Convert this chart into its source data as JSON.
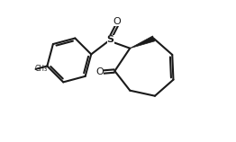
{
  "bg_color": "#ffffff",
  "line_color": "#1a1a1a",
  "line_width": 1.5,
  "figsize": [
    2.62,
    1.58
  ],
  "dpi": 100,
  "xlim": [
    0.0,
    10.0
  ],
  "ylim": [
    0.0,
    6.5
  ]
}
